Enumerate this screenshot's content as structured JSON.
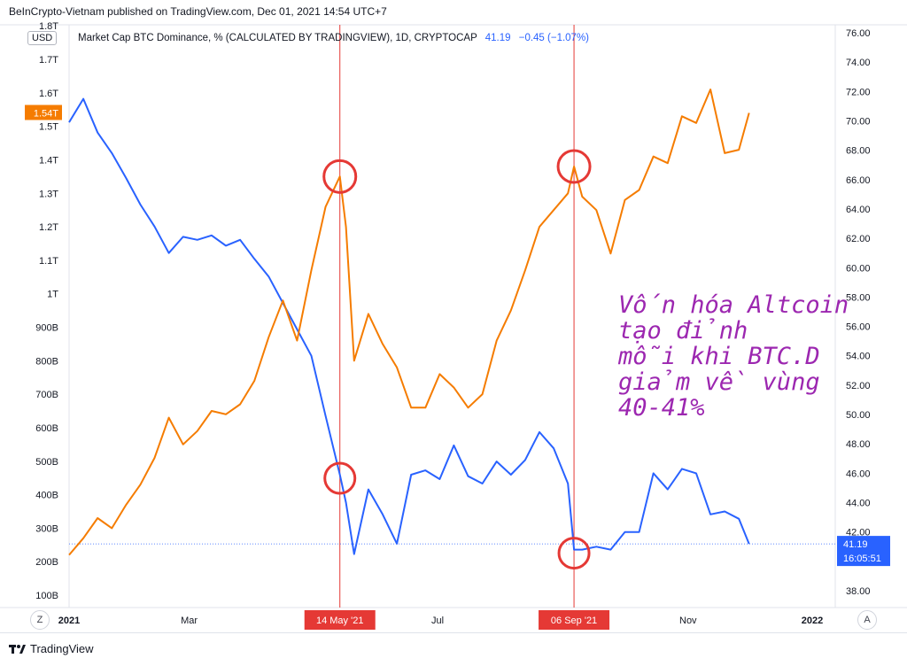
{
  "header": {
    "publisher": "BeInCrypto-Vietnam published on TradingView.com, Dec 01, 2021 14:54 UTC+7",
    "currency": "USD",
    "legend_title": "Market Cap BTC Dominance, % (CALCULATED BY TRADINGVIEW), 1D, CRYPTOCAP",
    "legend_value": "41.19",
    "legend_change": "−0.45 (−1.07%)"
  },
  "annotation": {
    "lines": [
      "Vốn hóa Altcoin",
      "tạo đỉnh",
      "mỗi khi BTC.D",
      "giảm về vùng",
      "40-41%"
    ]
  },
  "footer": {
    "brand": "TradingView",
    "left_button": "Z",
    "right_button": "A"
  },
  "colors": {
    "altcoin_cap": "#f57c00",
    "btc_dominance": "#2962ff",
    "marker": "#e53935",
    "annotation": "#9c27b0",
    "axis_label_bg": "#f57c00"
  },
  "chart_data": {
    "type": "line",
    "x_axis": {
      "ticks": [
        "2021",
        "Mar",
        "Jul",
        "Nov",
        "2022"
      ],
      "highlight_labels": [
        "14 May '21",
        "06 Sep '21"
      ]
    },
    "left_axis": {
      "ticks": [
        "100B",
        "200B",
        "300B",
        "400B",
        "500B",
        "600B",
        "700B",
        "800B",
        "900B",
        "1T",
        "1.1T",
        "1.2T",
        "1.3T",
        "1.4T",
        "1.5T",
        "1.6T",
        "1.7T",
        "1.8T"
      ],
      "current_label": "1.54T"
    },
    "right_axis": {
      "ticks": [
        "38.00",
        "40.00",
        "42.00",
        "44.00",
        "46.00",
        "48.00",
        "50.00",
        "52.00",
        "54.00",
        "56.00",
        "58.00",
        "60.00",
        "62.00",
        "64.00",
        "66.00",
        "68.00",
        "70.00",
        "72.00",
        "74.00",
        "76.00"
      ],
      "current_label": "41.19",
      "countdown": "16:05:51"
    },
    "series": [
      {
        "name": "Market Cap BTC Dominance, %",
        "axis": "right",
        "unit": "%",
        "dates": [
          "2021-01-01",
          "2021-01-08",
          "2021-01-15",
          "2021-01-22",
          "2021-01-29",
          "2021-02-05",
          "2021-02-12",
          "2021-02-19",
          "2021-02-26",
          "2021-03-05",
          "2021-03-12",
          "2021-03-19",
          "2021-03-26",
          "2021-04-02",
          "2021-04-09",
          "2021-04-16",
          "2021-04-23",
          "2021-04-30",
          "2021-05-07",
          "2021-05-14",
          "2021-05-17",
          "2021-05-21",
          "2021-05-28",
          "2021-06-04",
          "2021-06-11",
          "2021-06-18",
          "2021-06-25",
          "2021-07-02",
          "2021-07-09",
          "2021-07-16",
          "2021-07-23",
          "2021-07-30",
          "2021-08-06",
          "2021-08-13",
          "2021-08-20",
          "2021-08-27",
          "2021-09-03",
          "2021-09-06",
          "2021-09-10",
          "2021-09-17",
          "2021-09-24",
          "2021-10-01",
          "2021-10-08",
          "2021-10-15",
          "2021-10-22",
          "2021-10-29",
          "2021-11-05",
          "2021-11-12",
          "2021-11-19",
          "2021-11-26",
          "2021-12-01"
        ],
        "values": [
          69.9,
          71.5,
          69.2,
          67.8,
          66.1,
          64.3,
          62.8,
          61.0,
          62.1,
          61.9,
          62.2,
          61.5,
          61.9,
          60.6,
          59.4,
          57.6,
          55.8,
          54.0,
          49.9,
          45.9,
          44.0,
          40.5,
          44.9,
          43.2,
          41.2,
          45.9,
          46.2,
          45.6,
          47.9,
          45.8,
          45.3,
          46.8,
          45.9,
          46.9,
          48.8,
          47.7,
          45.3,
          40.8,
          40.8,
          41.0,
          40.8,
          42.0,
          42.0,
          46.0,
          44.9,
          46.3,
          46.0,
          43.2,
          43.4,
          42.9,
          41.19
        ]
      },
      {
        "name": "Altcoin Market Cap",
        "axis": "left",
        "unit": "USD",
        "dates": [
          "2021-01-01",
          "2021-01-08",
          "2021-01-15",
          "2021-01-22",
          "2021-01-29",
          "2021-02-05",
          "2021-02-12",
          "2021-02-19",
          "2021-02-26",
          "2021-03-05",
          "2021-03-12",
          "2021-03-19",
          "2021-03-26",
          "2021-04-02",
          "2021-04-09",
          "2021-04-16",
          "2021-04-23",
          "2021-04-30",
          "2021-05-07",
          "2021-05-14",
          "2021-05-17",
          "2021-05-21",
          "2021-05-28",
          "2021-06-04",
          "2021-06-11",
          "2021-06-18",
          "2021-06-25",
          "2021-07-02",
          "2021-07-09",
          "2021-07-16",
          "2021-07-23",
          "2021-07-30",
          "2021-08-06",
          "2021-08-13",
          "2021-08-20",
          "2021-08-27",
          "2021-09-03",
          "2021-09-06",
          "2021-09-10",
          "2021-09-17",
          "2021-09-24",
          "2021-10-01",
          "2021-10-08",
          "2021-10-15",
          "2021-10-22",
          "2021-10-29",
          "2021-11-05",
          "2021-11-12",
          "2021-11-19",
          "2021-11-26",
          "2021-12-01"
        ],
        "values": [
          220000000000.0,
          270000000000.0,
          330000000000.0,
          300000000000.0,
          370000000000.0,
          430000000000.0,
          510000000000.0,
          630000000000.0,
          550000000000.0,
          590000000000.0,
          650000000000.0,
          640000000000.0,
          670000000000.0,
          740000000000.0,
          870000000000.0,
          980000000000.0,
          860000000000.0,
          1070000000000.0,
          1260000000000.0,
          1350000000000.0,
          1200000000000.0,
          800000000000.0,
          940000000000.0,
          850000000000.0,
          780000000000.0,
          660000000000.0,
          660000000000.0,
          760000000000.0,
          720000000000.0,
          660000000000.0,
          700000000000.0,
          860000000000.0,
          950000000000.0,
          1070000000000.0,
          1200000000000.0,
          1250000000000.0,
          1300000000000.0,
          1380000000000.0,
          1290000000000.0,
          1250000000000.0,
          1120000000000.0,
          1280000000000.0,
          1310000000000.0,
          1410000000000.0,
          1390000000000.0,
          1530000000000.0,
          1510000000000.0,
          1610000000000.0,
          1420000000000.0,
          1430000000000.0,
          1540000000000.0
        ]
      }
    ],
    "highlights": [
      {
        "date": "2021-05-14",
        "label": "14 May '21"
      },
      {
        "date": "2021-09-06",
        "label": "06 Sep '21"
      }
    ],
    "reference_level": 41.19
  }
}
